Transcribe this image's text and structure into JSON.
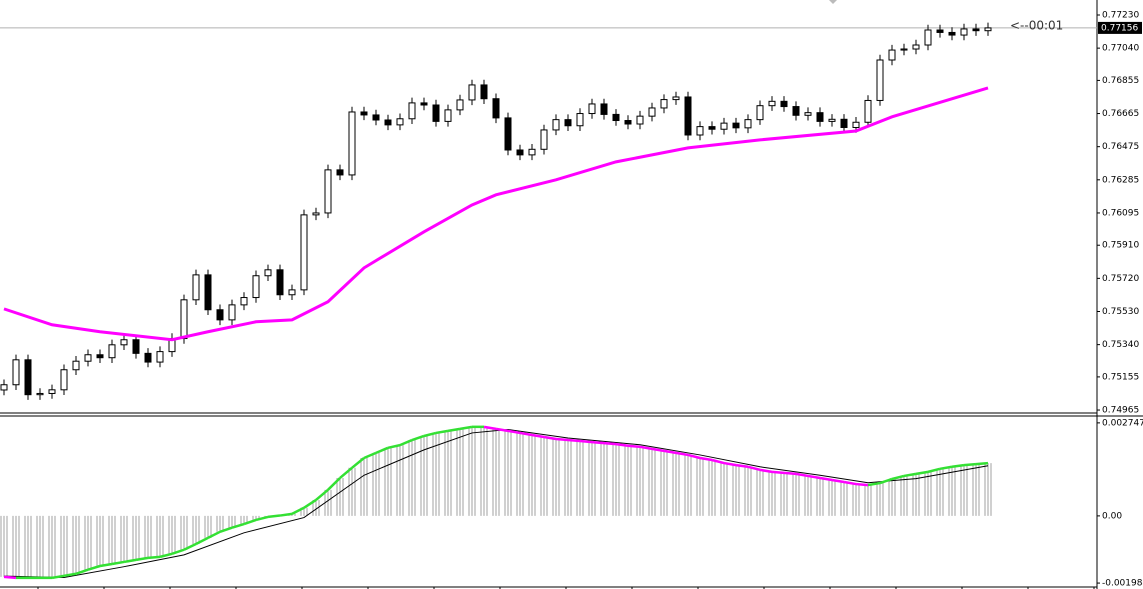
{
  "chart_data": [
    {
      "type": "candlestick",
      "open": [
        0.7508,
        0.7511,
        0.75253,
        0.75053,
        0.7506,
        0.75081,
        0.75196,
        0.75245,
        0.75282,
        0.75265,
        0.75339,
        0.75368,
        0.7529,
        0.7524,
        0.753,
        0.75375,
        0.75597,
        0.7574,
        0.7554,
        0.75482,
        0.75568,
        0.7561,
        0.75735,
        0.75769,
        0.75626,
        0.75654,
        0.76084,
        0.76095,
        0.76342,
        0.76313,
        0.76674,
        0.76657,
        0.76628,
        0.766,
        0.76635,
        0.76726,
        0.76714,
        0.7662,
        0.76686,
        0.76743,
        0.76829,
        0.7675,
        0.7664,
        0.76456,
        0.76428,
        0.7646,
        0.76571,
        0.7663,
        0.76595,
        0.76665,
        0.7672,
        0.7666,
        0.76625,
        0.76605,
        0.7665,
        0.76697,
        0.76745,
        0.7676,
        0.76542,
        0.7659,
        0.76575,
        0.7661,
        0.76583,
        0.7663,
        0.7671,
        0.76735,
        0.76705,
        0.76655,
        0.7667,
        0.7662,
        0.76632,
        0.76585,
        0.76615,
        0.7674,
        0.76972,
        0.77029,
        0.77035,
        0.77058,
        0.77144,
        0.7713,
        0.77115,
        0.7715,
        0.7714
      ],
      "high": [
        0.7514,
        0.75283,
        0.75283,
        0.7509,
        0.75111,
        0.75226,
        0.75275,
        0.75312,
        0.75312,
        0.75369,
        0.75398,
        0.75398,
        0.7532,
        0.7533,
        0.75405,
        0.75627,
        0.7577,
        0.7577,
        0.7557,
        0.75598,
        0.7564,
        0.75765,
        0.75799,
        0.75799,
        0.75684,
        0.76114,
        0.76125,
        0.76372,
        0.76372,
        0.76704,
        0.76704,
        0.76687,
        0.76658,
        0.76665,
        0.76756,
        0.76756,
        0.76744,
        0.76716,
        0.76773,
        0.76859,
        0.76859,
        0.7678,
        0.7667,
        0.76486,
        0.7649,
        0.76601,
        0.7666,
        0.7666,
        0.76695,
        0.7675,
        0.7675,
        0.7669,
        0.76655,
        0.7668,
        0.76727,
        0.76775,
        0.7679,
        0.7679,
        0.7662,
        0.7662,
        0.7664,
        0.7664,
        0.7666,
        0.7674,
        0.76765,
        0.76765,
        0.76735,
        0.767,
        0.767,
        0.76662,
        0.76662,
        0.76645,
        0.7677,
        0.77002,
        0.77059,
        0.77065,
        0.77088,
        0.77174,
        0.77174,
        0.7716,
        0.7718,
        0.7718,
        0.77186
      ],
      "low": [
        0.7505,
        0.7508,
        0.75023,
        0.75023,
        0.7503,
        0.75051,
        0.75166,
        0.75215,
        0.75235,
        0.75235,
        0.75309,
        0.7526,
        0.7521,
        0.7521,
        0.7527,
        0.75345,
        0.75567,
        0.7551,
        0.75452,
        0.75452,
        0.75538,
        0.7558,
        0.75705,
        0.75596,
        0.75596,
        0.75624,
        0.76054,
        0.76065,
        0.76283,
        0.76283,
        0.76627,
        0.76598,
        0.7657,
        0.7657,
        0.76605,
        0.76684,
        0.7659,
        0.7659,
        0.76656,
        0.76713,
        0.7672,
        0.7661,
        0.76426,
        0.76398,
        0.76398,
        0.7643,
        0.76541,
        0.76565,
        0.76565,
        0.76635,
        0.7663,
        0.76595,
        0.76575,
        0.76575,
        0.7662,
        0.76667,
        0.76715,
        0.76512,
        0.76512,
        0.76545,
        0.76545,
        0.76553,
        0.76553,
        0.766,
        0.7668,
        0.76675,
        0.76625,
        0.76625,
        0.7659,
        0.7659,
        0.76555,
        0.76555,
        0.76585,
        0.7671,
        0.76942,
        0.76999,
        0.77005,
        0.77028,
        0.771,
        0.77085,
        0.77085,
        0.7711,
        0.7711
      ],
      "close": [
        0.7511,
        0.75253,
        0.75053,
        0.7506,
        0.75081,
        0.75196,
        0.75245,
        0.75282,
        0.75265,
        0.75339,
        0.75368,
        0.7529,
        0.7524,
        0.753,
        0.75375,
        0.75597,
        0.7574,
        0.7554,
        0.75482,
        0.75568,
        0.7561,
        0.75735,
        0.75769,
        0.75626,
        0.75654,
        0.76084,
        0.76095,
        0.76342,
        0.76313,
        0.76674,
        0.76657,
        0.76628,
        0.766,
        0.76635,
        0.76726,
        0.76714,
        0.7662,
        0.76686,
        0.76743,
        0.76829,
        0.7675,
        0.7664,
        0.76456,
        0.76428,
        0.7646,
        0.76571,
        0.7663,
        0.76595,
        0.76665,
        0.7672,
        0.7666,
        0.76625,
        0.76605,
        0.7665,
        0.76697,
        0.76745,
        0.7676,
        0.76542,
        0.7659,
        0.76575,
        0.7661,
        0.76583,
        0.7663,
        0.7671,
        0.76735,
        0.76705,
        0.76655,
        0.7667,
        0.7662,
        0.76632,
        0.76585,
        0.76615,
        0.7674,
        0.76972,
        0.77029,
        0.77035,
        0.77058,
        0.77144,
        0.7713,
        0.77115,
        0.7715,
        0.7714,
        0.77156
      ],
      "moving_average": {
        "color": "#ff00ff",
        "x": [
          0,
          4,
          8,
          14,
          17,
          21,
          24,
          27,
          30,
          35,
          39,
          41,
          46,
          51,
          57,
          63,
          71,
          74,
          82
        ],
        "values": [
          0.75545,
          0.75454,
          0.75414,
          0.75368,
          0.75414,
          0.75471,
          0.75482,
          0.75586,
          0.7578,
          0.75987,
          0.76141,
          0.76199,
          0.76285,
          0.76388,
          0.76468,
          0.76514,
          0.76565,
          0.76646,
          0.76812
        ]
      },
      "current_price": {
        "value": 0.77156,
        "label": "0.77156"
      },
      "annotation": "<--00:01",
      "ylim": [
        0.74948,
        0.77316
      ],
      "yticks": [
        {
          "value": 0.7723,
          "label": "0.77230"
        },
        {
          "value": 0.7704,
          "label": "0.77040"
        },
        0.76855,
        0.76665,
        0.76475,
        0.76285,
        0.76095,
        {
          "value": 0.7591,
          "label": "0.75910"
        },
        {
          "value": 0.7572,
          "label": "0.75720"
        },
        {
          "value": 0.7553,
          "label": "0.75530"
        },
        {
          "value": 0.7534,
          "label": "0.75340"
        },
        0.75155,
        0.74965
      ]
    },
    {
      "type": "macd",
      "values": [
        -0.0018,
        -0.00183,
        -0.00183,
        -0.00183,
        -0.00183,
        -0.00177,
        -0.00171,
        -0.00159,
        -0.00148,
        -0.00142,
        -0.00136,
        -0.0013,
        -0.00124,
        -0.00121,
        -0.00112,
        -0.001,
        -0.00083,
        -0.00065,
        -0.00047,
        -0.00035,
        -0.00024,
        -0.00012,
        -3e-05,
        1e-05,
        6e-05,
        0.00024,
        0.00047,
        0.00077,
        0.00112,
        0.00142,
        0.00171,
        0.00186,
        0.00201,
        0.00209,
        0.00224,
        0.00236,
        0.00245,
        0.00251,
        0.00257,
        0.00263,
        0.00263,
        0.00257,
        0.00251,
        0.00245,
        0.00239,
        0.00233,
        0.00227,
        0.00224,
        0.00221,
        0.00218,
        0.00215,
        0.00212,
        0.00207,
        0.00204,
        0.00198,
        0.00192,
        0.00186,
        0.0018,
        0.00171,
        0.00165,
        0.00156,
        0.0015,
        0.00145,
        0.00136,
        0.0013,
        0.00127,
        0.00124,
        0.00118,
        0.00112,
        0.00106,
        0.001,
        0.00094,
        0.00091,
        0.00097,
        0.00109,
        0.00118,
        0.00124,
        0.0013,
        0.00139,
        0.00145,
        0.0015,
        0.00153,
        0.00156
      ],
      "bar_color": "#a0a0a0",
      "rising_color": "#33e033",
      "falling_color": "#ff00ff",
      "signal": {
        "color": "#000000",
        "x": [
          0,
          5,
          10,
          15,
          20,
          25,
          30,
          35,
          39,
          42,
          47,
          53,
          58,
          63,
          68,
          72,
          76,
          82
        ],
        "values": [
          -0.00178,
          -0.00182,
          -0.0015,
          -0.00115,
          -0.0005,
          -5e-05,
          0.0012,
          0.00195,
          0.00245,
          0.00255,
          0.0023,
          0.0021,
          0.0018,
          0.00145,
          0.0012,
          0.00098,
          0.0011,
          0.00148
        ]
      },
      "ylim": [
        -0.0021,
        0.00295
      ],
      "yticks": [
        0.002747,
        {
          "value": 0,
          "label": "0.00"
        },
        -0.001984
      ]
    }
  ]
}
